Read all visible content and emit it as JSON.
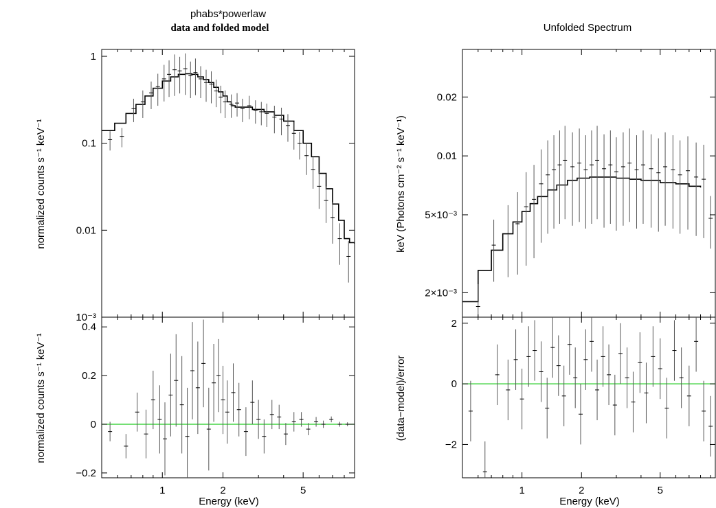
{
  "chart_data": [
    {
      "type": "line",
      "title": "phabs*powerlaw",
      "subtitle": "data and folded model",
      "xlabel": "",
      "ylabel": "normalized counts s⁻¹ keV⁻¹",
      "xscale": "log",
      "yscale": "log",
      "xlim": [
        0.5,
        9.0
      ],
      "ylim": [
        0.001,
        1.2
      ],
      "yticks": [
        {
          "v": 1,
          "t": "1"
        },
        {
          "v": 0.1,
          "t": "0.1"
        },
        {
          "v": 0.01,
          "t": "0.01"
        },
        {
          "v": 0.001,
          "t": "10⁻³"
        }
      ],
      "grid": false,
      "series": [
        {
          "role": "model",
          "color": "#000000",
          "x": [
            0.5,
            0.58,
            0.66,
            0.74,
            0.82,
            0.9,
            1.0,
            1.1,
            1.2,
            1.3,
            1.4,
            1.5,
            1.6,
            1.7,
            1.8,
            1.9,
            2.0,
            2.1,
            2.2,
            2.3,
            2.5,
            2.8,
            3.2,
            3.6,
            4.0,
            4.5,
            5.0,
            5.5,
            6.0,
            6.5,
            7.0,
            7.5,
            8.0,
            8.5,
            9.0
          ],
          "y": [
            0.14,
            0.17,
            0.22,
            0.28,
            0.35,
            0.43,
            0.52,
            0.58,
            0.62,
            0.63,
            0.62,
            0.58,
            0.54,
            0.5,
            0.44,
            0.39,
            0.35,
            0.3,
            0.27,
            0.26,
            0.26,
            0.245,
            0.23,
            0.21,
            0.18,
            0.14,
            0.1,
            0.07,
            0.045,
            0.03,
            0.02,
            0.013,
            0.008,
            0.0072,
            0.007
          ]
        },
        {
          "role": "data",
          "color": "#000000",
          "x": [
            0.55,
            0.63,
            0.72,
            0.8,
            0.88,
            0.95,
            1.02,
            1.08,
            1.15,
            1.22,
            1.3,
            1.38,
            1.46,
            1.55,
            1.65,
            1.75,
            1.85,
            1.95,
            2.05,
            2.2,
            2.35,
            2.5,
            2.7,
            2.9,
            3.1,
            3.3,
            3.6,
            3.9,
            4.2,
            4.5,
            4.8,
            5.2,
            5.6,
            6.0,
            6.5,
            7.0,
            7.6,
            8.4
          ],
          "y": [
            0.11,
            0.12,
            0.25,
            0.3,
            0.38,
            0.45,
            0.55,
            0.62,
            0.7,
            0.68,
            0.72,
            0.6,
            0.65,
            0.55,
            0.5,
            0.48,
            0.4,
            0.34,
            0.3,
            0.28,
            0.29,
            0.25,
            0.27,
            0.24,
            0.23,
            0.22,
            0.2,
            0.19,
            0.16,
            0.13,
            0.1,
            0.072,
            0.05,
            0.032,
            0.022,
            0.014,
            0.008,
            0.005
          ],
          "yerr_frac": [
            0.25,
            0.25,
            0.3,
            0.35,
            0.35,
            0.4,
            0.45,
            0.45,
            0.5,
            0.45,
            0.5,
            0.45,
            0.45,
            0.4,
            0.4,
            0.4,
            0.35,
            0.35,
            0.35,
            0.3,
            0.3,
            0.3,
            0.3,
            0.3,
            0.3,
            0.3,
            0.35,
            0.35,
            0.35,
            0.35,
            0.35,
            0.4,
            0.4,
            0.45,
            0.45,
            0.5,
            0.5,
            0.5
          ]
        }
      ]
    },
    {
      "type": "line",
      "title": "",
      "xlabel": "Energy (keV)",
      "ylabel": "normalized counts s⁻¹ keV⁻¹",
      "xscale": "log",
      "yscale": "linear",
      "xlim": [
        0.5,
        9.0
      ],
      "ylim": [
        -0.22,
        0.44
      ],
      "xticks": [
        {
          "v": 1,
          "t": "1"
        },
        {
          "v": 2,
          "t": "2"
        },
        {
          "v": 5,
          "t": "5"
        }
      ],
      "yticks": [
        {
          "v": 0.4,
          "t": "0.4"
        },
        {
          "v": 0.2,
          "t": "0.2"
        },
        {
          "v": 0,
          "t": "0"
        },
        {
          "v": -0.2,
          "t": "−0.2"
        }
      ],
      "reference_line": {
        "y": 0,
        "color": "#22cc22"
      },
      "series": [
        {
          "role": "data",
          "color": "#000000",
          "x": [
            0.55,
            0.66,
            0.75,
            0.83,
            0.9,
            0.97,
            1.03,
            1.1,
            1.17,
            1.25,
            1.33,
            1.41,
            1.5,
            1.6,
            1.7,
            1.8,
            1.9,
            2.0,
            2.1,
            2.25,
            2.4,
            2.6,
            2.8,
            3.0,
            3.2,
            3.5,
            3.8,
            4.1,
            4.5,
            4.9,
            5.3,
            5.8,
            6.3,
            6.9,
            7.6,
            8.3
          ],
          "y": [
            -0.03,
            -0.09,
            0.05,
            -0.04,
            0.1,
            0.02,
            -0.06,
            0.12,
            0.18,
            0.08,
            -0.05,
            0.22,
            0.15,
            0.25,
            -0.02,
            0.17,
            0.2,
            0.1,
            0.05,
            0.13,
            0.06,
            -0.03,
            0.09,
            0.02,
            -0.05,
            0.04,
            0.03,
            -0.04,
            0.01,
            0.02,
            -0.02,
            0.01,
            0.0,
            0.02,
            0.0,
            0.0
          ],
          "yerr": [
            0.04,
            0.05,
            0.08,
            0.1,
            0.12,
            0.14,
            0.15,
            0.17,
            0.19,
            0.2,
            0.2,
            0.2,
            0.19,
            0.18,
            0.17,
            0.16,
            0.15,
            0.14,
            0.13,
            0.12,
            0.11,
            0.1,
            0.09,
            0.08,
            0.07,
            0.06,
            0.05,
            0.045,
            0.04,
            0.03,
            0.025,
            0.02,
            0.015,
            0.012,
            0.01,
            0.008
          ]
        }
      ]
    },
    {
      "type": "line",
      "title": "Unfolded Spectrum",
      "xlabel": "",
      "ylabel": "keV (Photons cm⁻² s⁻¹ keV⁻¹)",
      "xscale": "log",
      "yscale": "log",
      "xlim": [
        0.5,
        9.5
      ],
      "ylim": [
        0.0015,
        0.035
      ],
      "yticks": [
        {
          "v": 0.02,
          "t": "0.02"
        },
        {
          "v": 0.01,
          "t": "0.01"
        },
        {
          "v": 0.005,
          "t": "5×10⁻³"
        },
        {
          "v": 0.002,
          "t": "2×10⁻³"
        }
      ],
      "series": [
        {
          "role": "model",
          "color": "#000000",
          "x": [
            0.5,
            0.6,
            0.7,
            0.8,
            0.9,
            1.0,
            1.1,
            1.2,
            1.35,
            1.5,
            1.7,
            1.9,
            2.2,
            2.6,
            3.0,
            3.5,
            4.0,
            5.0,
            6.0,
            7.0,
            8.0
          ],
          "y": [
            0.0018,
            0.0026,
            0.0033,
            0.004,
            0.0046,
            0.0052,
            0.0057,
            0.0062,
            0.0067,
            0.0071,
            0.0075,
            0.0077,
            0.0078,
            0.0078,
            0.0077,
            0.0076,
            0.0075,
            0.0073,
            0.0072,
            0.007,
            0.0069
          ]
        },
        {
          "role": "data",
          "color": "#000000",
          "x": [
            0.6,
            0.72,
            0.85,
            0.95,
            1.05,
            1.15,
            1.25,
            1.35,
            1.45,
            1.55,
            1.65,
            1.8,
            1.95,
            2.1,
            2.25,
            2.4,
            2.6,
            2.8,
            3.0,
            3.25,
            3.5,
            3.8,
            4.1,
            4.5,
            4.9,
            5.3,
            5.8,
            6.3,
            6.9,
            7.6,
            8.3,
            9.0
          ],
          "y": [
            0.0017,
            0.0035,
            0.004,
            0.0045,
            0.0055,
            0.006,
            0.0072,
            0.008,
            0.0085,
            0.009,
            0.0095,
            0.0088,
            0.0092,
            0.0085,
            0.009,
            0.0095,
            0.0086,
            0.009,
            0.0083,
            0.0088,
            0.0092,
            0.0085,
            0.009,
            0.0086,
            0.0082,
            0.0088,
            0.0085,
            0.008,
            0.0084,
            0.0078,
            0.0076,
            0.0048
          ],
          "yerr_frac": [
            0.3,
            0.35,
            0.4,
            0.45,
            0.5,
            0.5,
            0.5,
            0.5,
            0.5,
            0.5,
            0.5,
            0.5,
            0.5,
            0.5,
            0.5,
            0.5,
            0.5,
            0.5,
            0.5,
            0.5,
            0.5,
            0.5,
            0.5,
            0.5,
            0.5,
            0.5,
            0.5,
            0.5,
            0.5,
            0.5,
            0.5,
            0.3
          ]
        }
      ]
    },
    {
      "type": "scatter",
      "title": "",
      "xlabel": "Energy (keV)",
      "ylabel": "(data−model)/error",
      "xscale": "log",
      "yscale": "linear",
      "xlim": [
        0.5,
        9.5
      ],
      "ylim": [
        -3.1,
        2.2
      ],
      "xticks": [
        {
          "v": 1,
          "t": "1"
        },
        {
          "v": 2,
          "t": "2"
        },
        {
          "v": 5,
          "t": "5"
        }
      ],
      "yticks": [
        {
          "v": 2,
          "t": "2"
        },
        {
          "v": 0,
          "t": "0"
        },
        {
          "v": -2,
          "t": "−2"
        }
      ],
      "reference_line": {
        "y": 0,
        "color": "#22cc22"
      },
      "series": [
        {
          "role": "data",
          "color": "#000000",
          "x": [
            0.55,
            0.65,
            0.75,
            0.85,
            0.93,
            1.0,
            1.08,
            1.16,
            1.25,
            1.34,
            1.43,
            1.53,
            1.63,
            1.74,
            1.86,
            1.98,
            2.1,
            2.25,
            2.4,
            2.57,
            2.75,
            2.95,
            3.15,
            3.4,
            3.65,
            3.95,
            4.25,
            4.6,
            5.0,
            5.4,
            5.9,
            6.4,
            7.0,
            7.6,
            8.3,
            9.0
          ],
          "y": [
            -0.9,
            -2.9,
            0.3,
            -0.2,
            0.8,
            -0.5,
            0.9,
            1.1,
            0.4,
            -0.8,
            1.2,
            0.6,
            -0.4,
            1.3,
            0.2,
            -1.0,
            0.8,
            1.4,
            -0.2,
            0.9,
            0.3,
            -0.7,
            1.0,
            0.2,
            -0.6,
            0.7,
            -0.3,
            0.9,
            0.5,
            -0.8,
            1.1,
            0.2,
            -0.4,
            1.4,
            -0.9,
            -1.4
          ],
          "yerr": [
            1,
            1,
            1,
            1,
            1,
            1,
            1,
            1,
            1,
            1,
            1,
            1,
            1,
            1,
            1,
            1,
            1,
            1,
            1,
            1,
            1,
            1,
            1,
            1,
            1,
            1,
            1,
            1,
            1,
            1,
            1,
            1,
            1,
            1,
            1,
            1
          ]
        }
      ]
    }
  ]
}
